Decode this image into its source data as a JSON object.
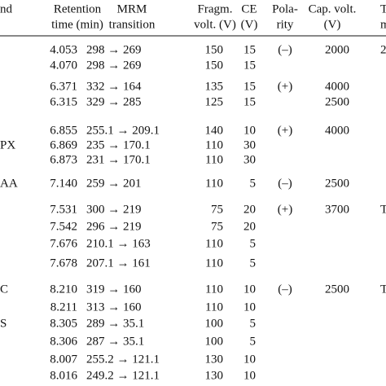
{
  "table": {
    "header": [
      [
        "nd"
      ],
      [
        "Retention",
        "time (min)"
      ],
      [
        "MRM",
        "transition"
      ],
      [
        "Fragm.",
        "volt. (V)"
      ],
      [
        "CE",
        "(V)"
      ],
      [
        "Pola-",
        "rity"
      ],
      [
        "Cap. volt.",
        "(V)"
      ],
      [
        "T",
        "m"
      ]
    ],
    "rows": [
      [
        null,
        "4.053",
        "298 → 269",
        "150",
        "15",
        "(–)",
        "2000",
        "2"
      ],
      [
        null,
        "4.070",
        "298 → 269",
        "150",
        "15",
        null,
        null,
        null
      ],
      [
        null,
        "6.371",
        "332 → 164",
        "135",
        "15",
        "(+)",
        "4000",
        null
      ],
      [
        null,
        "6.315",
        "329 → 285",
        "125",
        "15",
        null,
        "2500",
        null
      ],
      [
        null,
        "6.855",
        "255.1 → 209.1",
        "140",
        "10",
        "(+)",
        "4000",
        null
      ],
      [
        "PX",
        "6.869",
        "235 → 170.1",
        "110",
        "30",
        null,
        null,
        null
      ],
      [
        null,
        "6.873",
        "231 → 170.1",
        "110",
        "30",
        null,
        null,
        null
      ],
      [
        "AA",
        "7.140",
        "259 → 201",
        "110",
        "5",
        "(–)",
        "2500",
        null
      ],
      [
        null,
        "7.531",
        "300 → 219",
        "75",
        "20",
        "(+)",
        "3700",
        "T"
      ],
      [
        null,
        "7.542",
        "296 → 219",
        "75",
        "20",
        null,
        null,
        null
      ],
      [
        null,
        "7.676",
        "210.1 → 163",
        "110",
        "5",
        null,
        null,
        null
      ],
      [
        null,
        "7.678",
        "207.1 → 161",
        "110",
        "5",
        null,
        null,
        null
      ],
      [
        "C",
        "8.210",
        "319 → 160",
        "110",
        "10",
        "(–)",
        "2500",
        "T"
      ],
      [
        null,
        "8.211",
        "313 → 160",
        "110",
        "10",
        null,
        null,
        null
      ],
      [
        "S",
        "8.305",
        "289 → 35.1",
        "100",
        "5",
        null,
        null,
        null
      ],
      [
        null,
        "8.306",
        "287 → 35.1",
        "100",
        "5",
        null,
        null,
        null
      ],
      [
        null,
        "8.007",
        "255.2 → 121.1",
        "130",
        "10",
        null,
        null,
        null
      ],
      [
        null,
        "8.016",
        "249.2 → 121.1",
        "130",
        "10",
        null,
        null,
        null
      ]
    ]
  }
}
